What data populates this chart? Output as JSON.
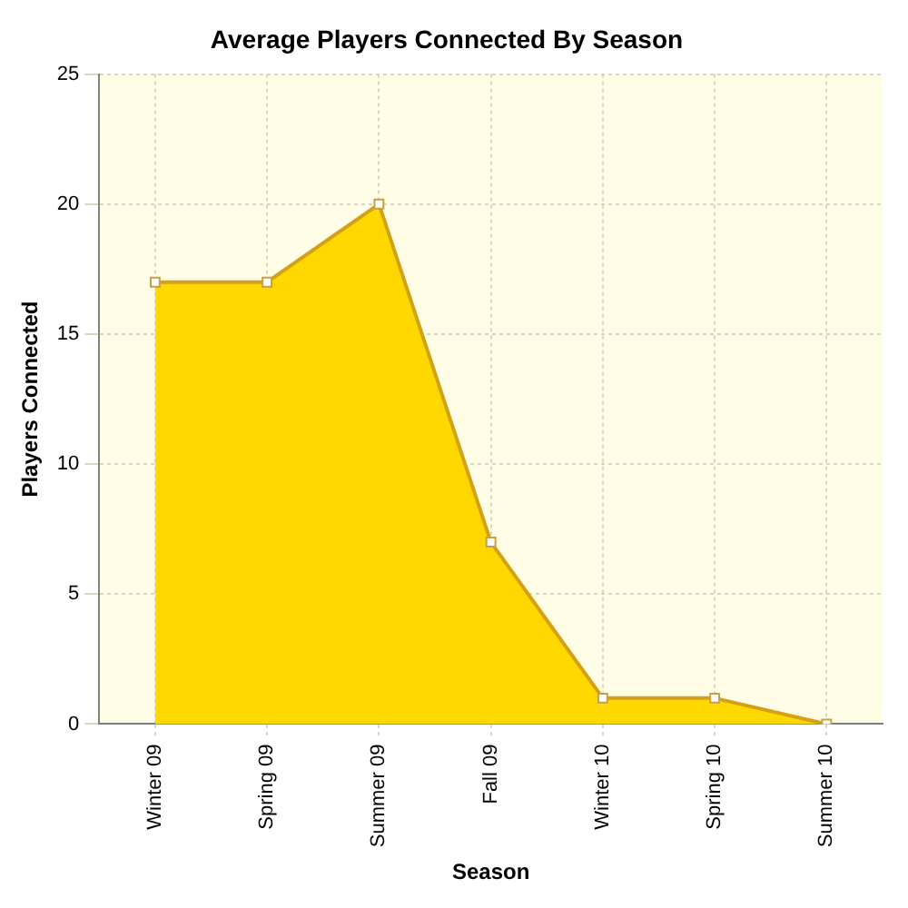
{
  "chart_data": {
    "type": "area",
    "title": "Average Players Connected By Season",
    "xlabel": "Season",
    "ylabel": "Players Connected",
    "categories": [
      "Winter 09",
      "Spring 09",
      "Summer 09",
      "Fall 09",
      "Winter 10",
      "Spring 10",
      "Summer 10"
    ],
    "series": [
      {
        "color": "#ffd800",
        "values": [
          17,
          17,
          20,
          7,
          1,
          1,
          0
        ]
      }
    ],
    "ylim": [
      0,
      25
    ],
    "yticks": [
      0,
      5,
      10,
      15,
      20,
      25
    ],
    "grid": true,
    "marker": "square",
    "legend": false
  }
}
